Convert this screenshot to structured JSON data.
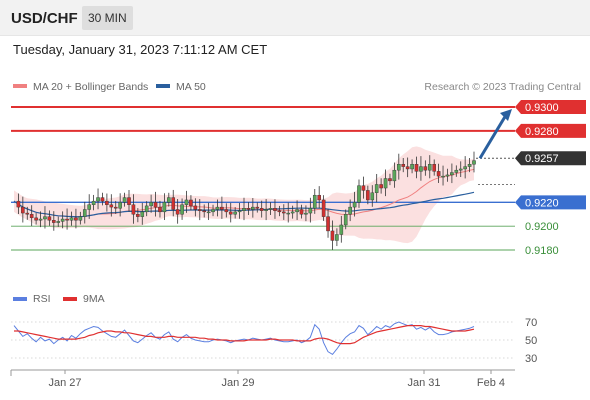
{
  "header": {
    "pair": "USD/CHF",
    "timeframe": "30 MIN",
    "datetime": "Tuesday, January 31, 2023 7:11:12 AM CET"
  },
  "chart_data": {
    "type": "candlestick",
    "xlabel": "",
    "ylabel": "",
    "x_ticks": [
      "Jan 27",
      "Jan 29",
      "Jan 31",
      "Feb 4"
    ],
    "ylim": [
      0.9165,
      0.9307
    ],
    "legend": [
      {
        "name": "MA 20 + Bollinger Bands",
        "color": "#f08080"
      },
      {
        "name": "MA 50",
        "color": "#2a5f9e"
      }
    ],
    "legend_position": "top-left",
    "credit": "Research © 2023 Trading Central",
    "levels": [
      {
        "label": "0.9300",
        "value": 0.93,
        "color": "#e03030",
        "style": "solid"
      },
      {
        "label": "0.9280",
        "value": 0.928,
        "color": "#e03030",
        "style": "solid"
      },
      {
        "label": "0.9257",
        "value": 0.9257,
        "color": "#333333",
        "style": "dotted"
      },
      {
        "label": "0.9220",
        "value": 0.922,
        "color": "#3a6fd0",
        "style": "solid"
      },
      {
        "label": "0.9200",
        "value": 0.92,
        "color": "#5aa55a",
        "style": "solid"
      },
      {
        "label": "0.9180",
        "value": 0.918,
        "color": "#5aa55a",
        "style": "solid"
      }
    ],
    "price_path": [
      0.9221,
      0.9216,
      0.9211,
      0.921,
      0.9207,
      0.9205,
      0.9206,
      0.9208,
      0.9205,
      0.9203,
      0.9204,
      0.9206,
      0.9205,
      0.9207,
      0.9205,
      0.9208,
      0.9214,
      0.9218,
      0.9221,
      0.9224,
      0.9221,
      0.9218,
      0.9216,
      0.9215,
      0.922,
      0.9224,
      0.9218,
      0.921,
      0.9208,
      0.9212,
      0.9217,
      0.922,
      0.9216,
      0.9212,
      0.922,
      0.9224,
      0.9214,
      0.921,
      0.9218,
      0.9222,
      0.9217,
      0.9214,
      0.9213,
      0.9212,
      0.9212,
      0.9214,
      0.9216,
      0.9214,
      0.9212,
      0.921,
      0.9212,
      0.9213,
      0.9215,
      0.9214,
      0.9216,
      0.9215,
      0.9213,
      0.9214,
      0.9215,
      0.9213,
      0.9212,
      0.9211,
      0.9211,
      0.9212,
      0.9214,
      0.921,
      0.9211,
      0.9215,
      0.9226,
      0.9222,
      0.9208,
      0.9196,
      0.9188,
      0.9193,
      0.9201,
      0.921,
      0.9216,
      0.922,
      0.9234,
      0.923,
      0.9222,
      0.9228,
      0.9235,
      0.9232,
      0.924,
      0.9238,
      0.9247,
      0.9252,
      0.925,
      0.9248,
      0.9252,
      0.9246,
      0.925,
      0.9247,
      0.9252,
      0.9246,
      0.9242,
      0.9242,
      0.9243,
      0.9245,
      0.9247,
      0.9248,
      0.925,
      0.9252,
      0.9255
    ],
    "projection": {
      "from": 0.9257,
      "to": 0.93
    },
    "rsi": {
      "ylim": [
        20,
        80
      ],
      "ticks": [
        70,
        50,
        30
      ],
      "legend": [
        {
          "name": "RSI",
          "color": "#5b7fe0"
        },
        {
          "name": "9MA",
          "color": "#e03030"
        }
      ],
      "rsi_values": [
        66,
        60,
        54,
        57,
        52,
        48,
        53,
        49,
        51,
        46,
        50,
        53,
        49,
        55,
        52,
        57,
        61,
        63,
        65,
        64,
        60,
        57,
        54,
        53,
        57,
        61,
        55,
        49,
        47,
        51,
        55,
        58,
        53,
        51,
        56,
        59,
        51,
        48,
        53,
        56,
        52,
        50,
        49,
        48,
        48,
        50,
        51,
        50,
        49,
        47,
        49,
        50,
        51,
        50,
        52,
        51,
        50,
        51,
        52,
        50,
        49,
        48,
        48,
        49,
        50,
        47,
        49,
        53,
        67,
        62,
        47,
        37,
        34,
        40,
        47,
        53,
        57,
        59,
        66,
        63,
        56,
        60,
        65,
        62,
        66,
        64,
        68,
        70,
        68,
        66,
        67,
        62,
        64,
        61,
        64,
        59,
        56,
        56,
        57,
        59,
        60,
        61,
        62,
        63,
        65
      ],
      "ma_values": [
        60,
        60,
        59,
        58,
        57,
        56,
        55,
        54,
        53,
        52,
        51,
        51,
        51,
        51,
        51,
        52,
        53,
        55,
        56,
        58,
        59,
        60,
        60,
        59,
        59,
        58,
        58,
        57,
        56,
        55,
        54,
        54,
        53,
        53,
        53,
        54,
        54,
        53,
        53,
        53,
        53,
        53,
        52,
        52,
        51,
        51,
        50,
        50,
        50,
        49,
        49,
        49,
        49,
        50,
        50,
        50,
        50,
        50,
        51,
        51,
        50,
        50,
        50,
        50,
        49,
        49,
        49,
        49,
        51,
        52,
        52,
        51,
        49,
        47,
        46,
        46,
        46,
        47,
        50,
        53,
        55,
        57,
        59,
        60,
        61,
        62,
        63,
        64,
        65,
        66,
        66,
        66,
        66,
        65,
        65,
        64,
        63,
        62,
        61,
        60,
        60,
        60,
        60,
        61,
        62
      ]
    },
    "colors": {
      "bull": "#5aa55a",
      "bear": "#d03030",
      "band_fill": "#fbe0e0",
      "ma20": "#f08080",
      "ma50": "#2a5f9e",
      "projection_arrow": "#2a5f9e"
    }
  }
}
